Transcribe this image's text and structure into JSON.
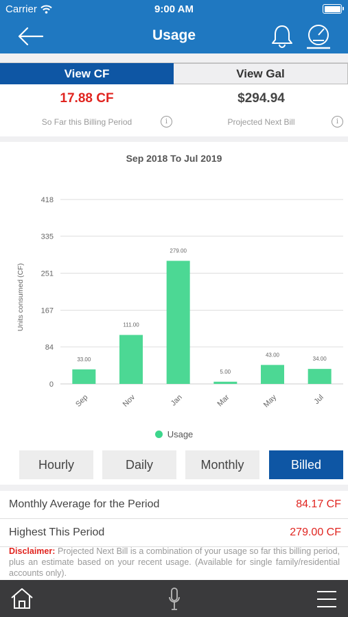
{
  "status_bar": {
    "carrier": "Carrier",
    "time": "9:00 AM"
  },
  "nav": {
    "title": "Usage",
    "icons": [
      "back-arrow-icon",
      "bell-icon",
      "meter-gauge-icon"
    ]
  },
  "unit_toggle": {
    "cf_label": "View CF",
    "gal_label": "View Gal",
    "selected": "View CF"
  },
  "summary": {
    "usage_value": "17.88 CF",
    "usage_label": "So Far this Billing Period",
    "bill_value": "$294.94",
    "bill_label": "Projected Next Bill",
    "info_glyph": "i"
  },
  "chart_data": {
    "type": "bar",
    "title": "Sep 2018 To Jul 2019",
    "ylabel": "Units consumed (CF)",
    "xlabel": "",
    "yticks": [
      0,
      84,
      167,
      251,
      335,
      418
    ],
    "ylim": [
      0,
      418
    ],
    "categories": [
      "Sep",
      "Nov",
      "Jan",
      "Mar",
      "May",
      "Jul"
    ],
    "series": [
      {
        "name": "Usage",
        "values": [
          33.0,
          111.0,
          279.0,
          5.0,
          43.0,
          34.0
        ],
        "color": "#4cd894"
      }
    ],
    "data_labels": [
      "33.00",
      "111.00",
      "279.00",
      "5.00",
      "43.00",
      "34.00"
    ],
    "grid": true,
    "legend": "bottom-center"
  },
  "periods": {
    "hourly": "Hourly",
    "daily": "Daily",
    "monthly": "Monthly",
    "billed": "Billed",
    "selected": "Billed"
  },
  "stats": {
    "avg_label": "Monthly Average for the Period",
    "avg_value": "84.17 CF",
    "high_label": "Highest This Period",
    "high_value": "279.00 CF"
  },
  "disclaimer": {
    "label": "Disclaimer:",
    "text": " Projected Next Bill is a combination of your usage so far this billing period, plus an estimate based on your recent usage. (Available for single family/residential accounts only)."
  },
  "tab_bar": {
    "icons": [
      "home-icon",
      "microphone-icon",
      "hamburger-menu-icon"
    ]
  },
  "colors": {
    "primary": "#1f78c1",
    "active_blue": "#0e56a4",
    "accent_red": "#e0241f",
    "bar_green": "#4cd894",
    "tab_bar_bg": "#3a3a3c"
  }
}
